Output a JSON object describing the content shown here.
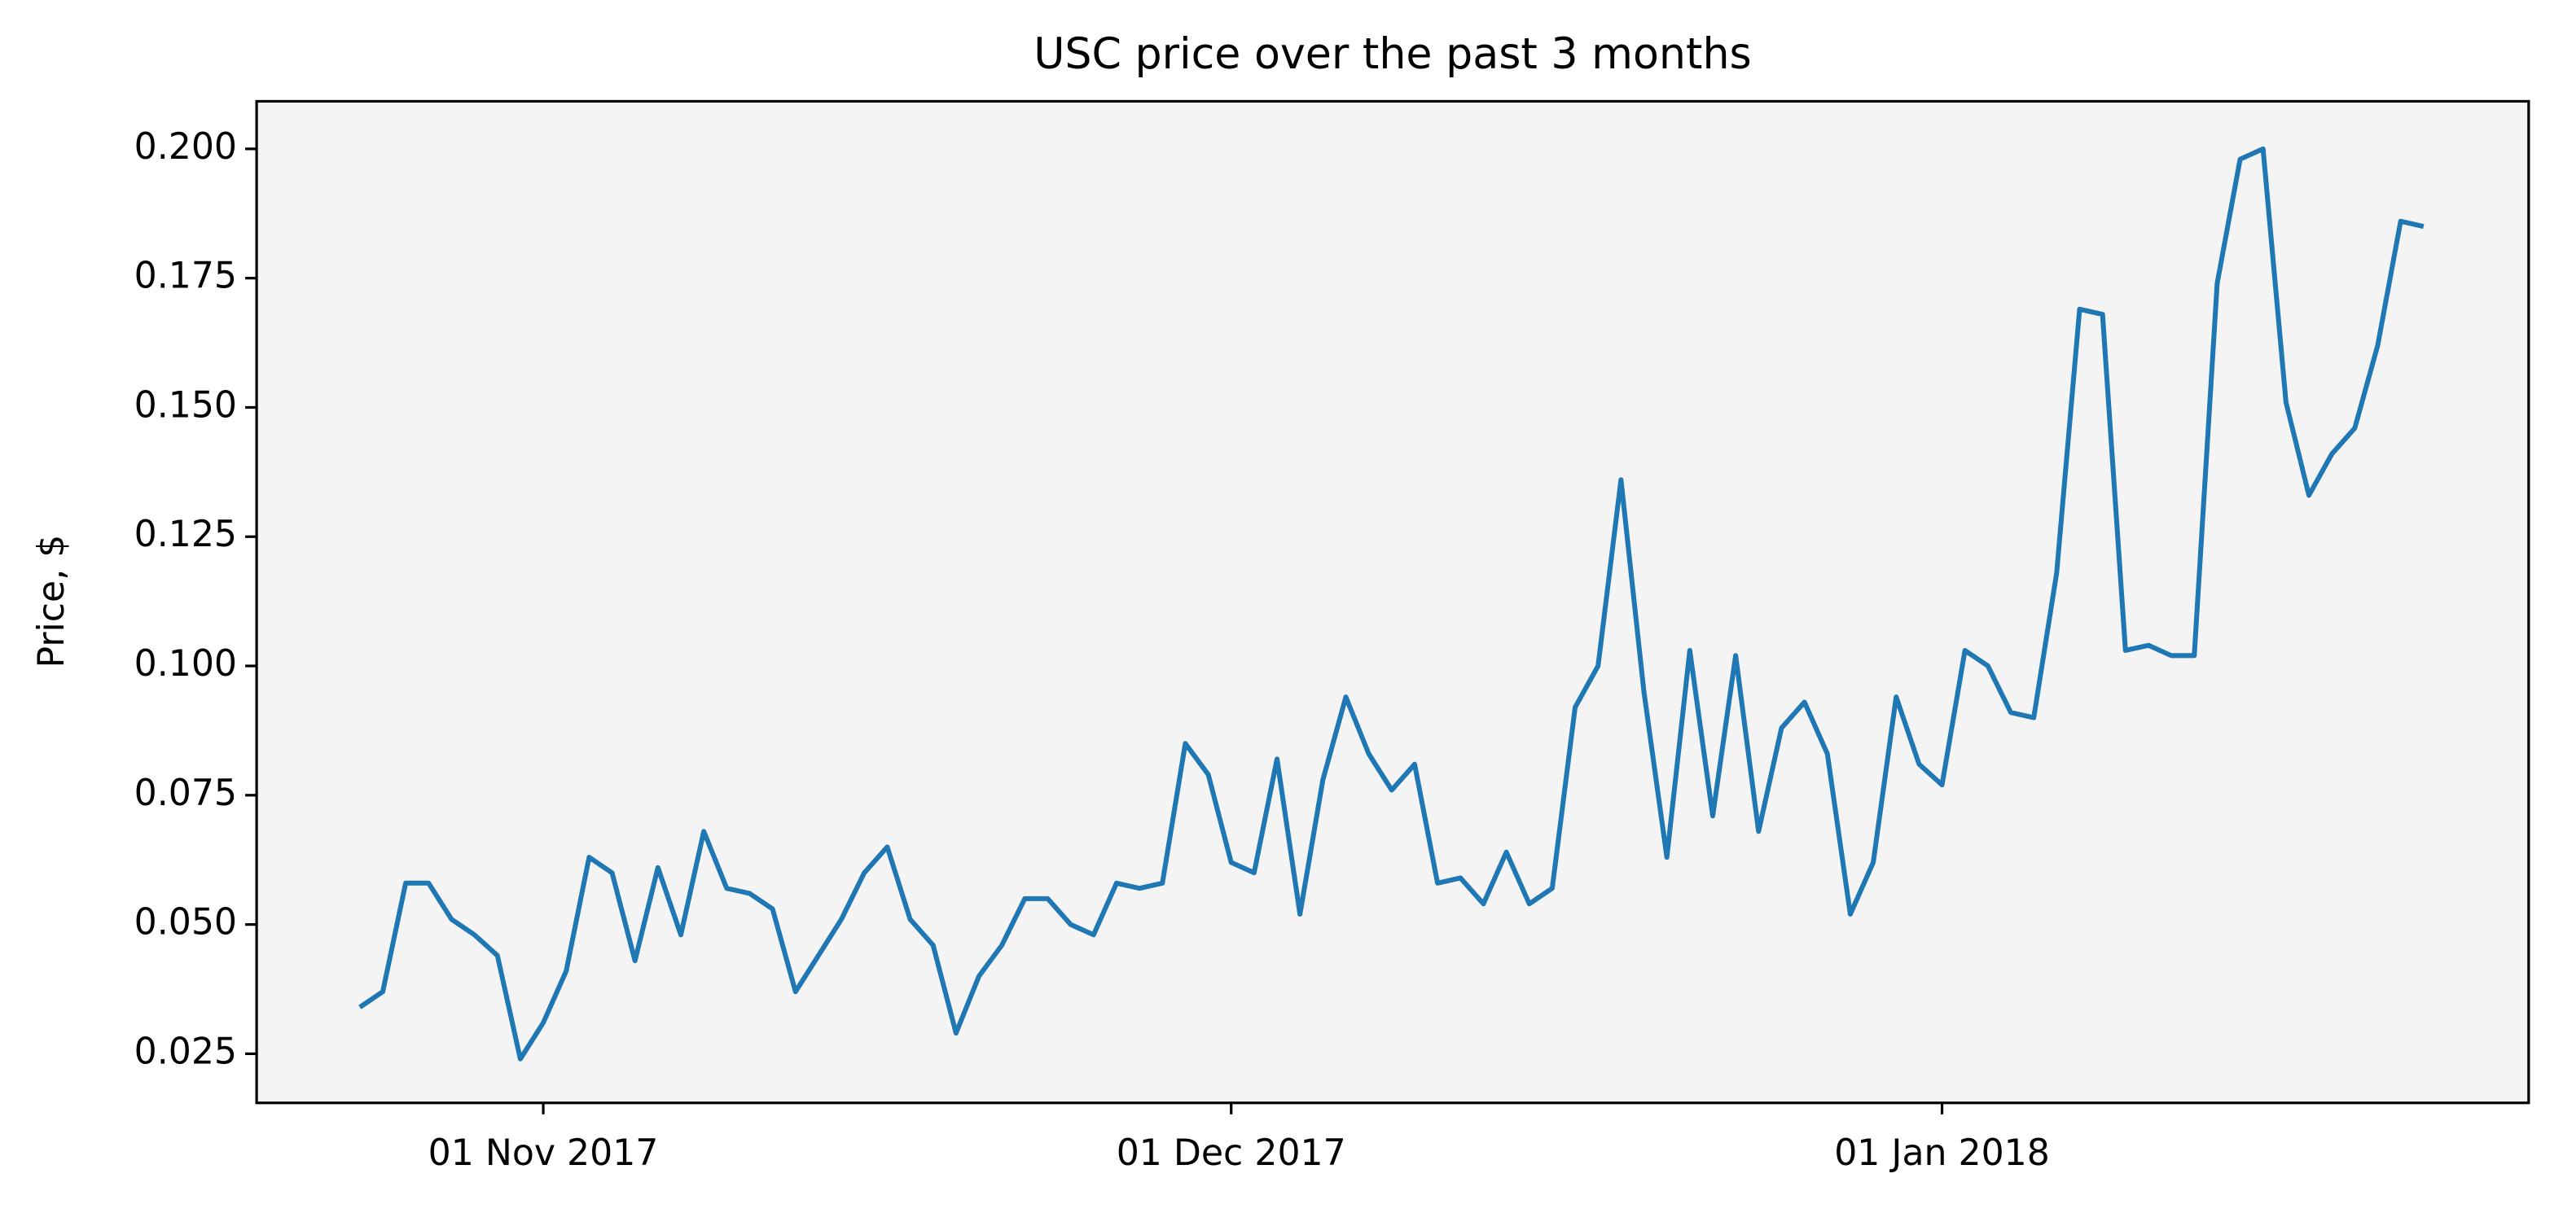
{
  "chart_data": {
    "type": "line",
    "title": "USC price over the past 3 months",
    "ylabel": "Price, $",
    "x": [
      "2017-10-24",
      "2017-10-25",
      "2017-10-26",
      "2017-10-27",
      "2017-10-28",
      "2017-10-29",
      "2017-10-30",
      "2017-10-31",
      "2017-11-01",
      "2017-11-02",
      "2017-11-03",
      "2017-11-04",
      "2017-11-05",
      "2017-11-06",
      "2017-11-07",
      "2017-11-08",
      "2017-11-09",
      "2017-11-10",
      "2017-11-11",
      "2017-11-12",
      "2017-11-13",
      "2017-11-14",
      "2017-11-15",
      "2017-11-16",
      "2017-11-17",
      "2017-11-18",
      "2017-11-19",
      "2017-11-20",
      "2017-11-21",
      "2017-11-22",
      "2017-11-23",
      "2017-11-24",
      "2017-11-25",
      "2017-11-26",
      "2017-11-27",
      "2017-11-28",
      "2017-11-29",
      "2017-11-30",
      "2017-12-01",
      "2017-12-02",
      "2017-12-03",
      "2017-12-04",
      "2017-12-05",
      "2017-12-06",
      "2017-12-07",
      "2017-12-08",
      "2017-12-09",
      "2017-12-10",
      "2017-12-11",
      "2017-12-12",
      "2017-12-13",
      "2017-12-14",
      "2017-12-15",
      "2017-12-16",
      "2017-12-17",
      "2017-12-18",
      "2017-12-19",
      "2017-12-20",
      "2017-12-21",
      "2017-12-22",
      "2017-12-23",
      "2017-12-24",
      "2017-12-25",
      "2017-12-26",
      "2017-12-27",
      "2017-12-28",
      "2017-12-29",
      "2017-12-30",
      "2017-12-31",
      "2018-01-01",
      "2018-01-02",
      "2018-01-03",
      "2018-01-04",
      "2018-01-05",
      "2018-01-06",
      "2018-01-07",
      "2018-01-08",
      "2018-01-09",
      "2018-01-10",
      "2018-01-11",
      "2018-01-12",
      "2018-01-13",
      "2018-01-14",
      "2018-01-15",
      "2018-01-16",
      "2018-01-17",
      "2018-01-18",
      "2018-01-19",
      "2018-01-20",
      "2018-01-21",
      "2018-01-22"
    ],
    "series": [
      {
        "name": "USC",
        "color": "#1f77b4",
        "values": [
          0.034,
          0.037,
          0.058,
          0.058,
          0.051,
          0.048,
          0.044,
          0.024,
          0.031,
          0.041,
          0.063,
          0.06,
          0.043,
          0.061,
          0.048,
          0.068,
          0.057,
          0.056,
          0.053,
          0.037,
          0.044,
          0.051,
          0.06,
          0.065,
          0.051,
          0.046,
          0.029,
          0.04,
          0.046,
          0.055,
          0.055,
          0.05,
          0.048,
          0.058,
          0.057,
          0.058,
          0.085,
          0.079,
          0.062,
          0.06,
          0.082,
          0.052,
          0.078,
          0.094,
          0.083,
          0.076,
          0.081,
          0.058,
          0.059,
          0.054,
          0.064,
          0.054,
          0.057,
          0.092,
          0.1,
          0.136,
          0.095,
          0.063,
          0.103,
          0.071,
          0.102,
          0.068,
          0.088,
          0.093,
          0.083,
          0.052,
          0.062,
          0.094,
          0.081,
          0.077,
          0.103,
          0.1,
          0.091,
          0.09,
          0.118,
          0.169,
          0.168,
          0.103,
          0.104,
          0.102,
          0.102,
          0.174,
          0.198,
          0.2,
          0.151,
          0.133,
          0.141,
          0.146,
          0.162,
          0.186,
          0.185
        ]
      }
    ],
    "xlim": [
      "2017-10-19T12:00:00Z",
      "2018-01-26T14:00:00Z"
    ],
    "xticks": [
      {
        "value": "2017-11-01",
        "label": "01 Nov 2017"
      },
      {
        "value": "2017-12-01",
        "label": "01 Dec 2017"
      },
      {
        "value": "2018-01-01",
        "label": "01 Jan 2018"
      }
    ],
    "ylim": [
      0.0155,
      0.2092
    ],
    "yticks": [
      {
        "value": 0.025,
        "label": "0.025"
      },
      {
        "value": 0.05,
        "label": "0.050"
      },
      {
        "value": 0.075,
        "label": "0.075"
      },
      {
        "value": 0.1,
        "label": "0.100"
      },
      {
        "value": 0.125,
        "label": "0.125"
      },
      {
        "value": 0.15,
        "label": "0.150"
      },
      {
        "value": 0.175,
        "label": "0.175"
      },
      {
        "value": 0.2,
        "label": "0.200"
      }
    ],
    "background": "#f4f4f4"
  }
}
